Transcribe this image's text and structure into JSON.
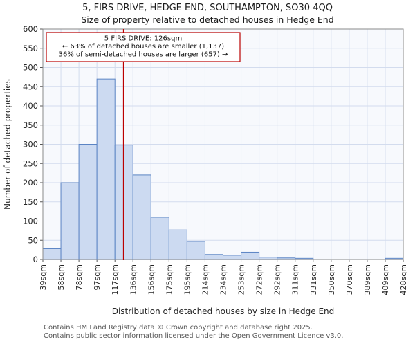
{
  "chart_data": {
    "type": "bar",
    "title": "5, FIRS DRIVE, HEDGE END, SOUTHAMPTON, SO30 4QQ",
    "subtitle": "Size of property relative to detached houses in Hedge End",
    "xlabel": "Distribution of detached houses by size in Hedge End",
    "ylabel": "Number of detached properties",
    "categories": [
      "39sqm",
      "58sqm",
      "78sqm",
      "97sqm",
      "117sqm",
      "136sqm",
      "156sqm",
      "175sqm",
      "195sqm",
      "214sqm",
      "234sqm",
      "253sqm",
      "272sqm",
      "292sqm",
      "311sqm",
      "331sqm",
      "350sqm",
      "370sqm",
      "389sqm",
      "409sqm",
      "428sqm"
    ],
    "values": [
      28,
      200,
      300,
      470,
      298,
      220,
      110,
      77,
      47,
      13,
      11,
      19,
      6,
      4,
      3,
      0,
      0,
      0,
      0,
      3
    ],
    "ylim": [
      0,
      600
    ],
    "ytick_step": 50,
    "grid": true,
    "legend": "none",
    "bar_fill": "#ccdaf1",
    "bar_stroke": "#5b84c4",
    "grid_color": "#d3dcee",
    "plot_bg": "#f7f9fd",
    "spine_color": "#8a8a8a",
    "marker": {
      "value_sqm": 126,
      "axis_start_sqm": 39,
      "axis_end_sqm": 428,
      "color": "#bb0000",
      "label_lines": [
        "5 FIRS DRIVE: 126sqm",
        "← 63% of detached houses are smaller (1,137)",
        "36% of semi-detached houses are larger (657) →"
      ]
    }
  },
  "footer": {
    "line1": "Contains HM Land Registry data © Crown copyright and database right 2025.",
    "line2": "Contains public sector information licensed under the Open Government Licence v3.0."
  }
}
